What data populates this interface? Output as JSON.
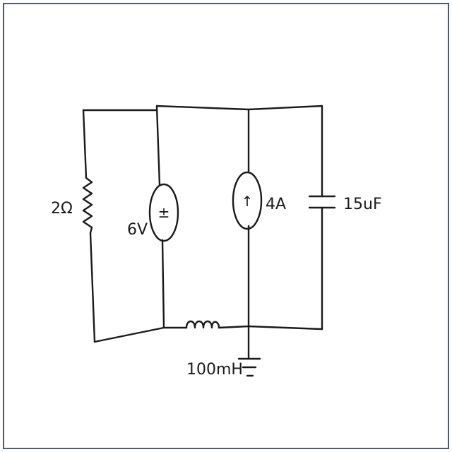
{
  "components": {
    "resistor": {
      "label": "2Ω"
    },
    "voltage_source": {
      "label": "6V",
      "symbol": "±"
    },
    "current_source": {
      "label": "4A",
      "symbol": "↑"
    },
    "capacitor": {
      "label": "15uF"
    },
    "inductor": {
      "label": "100mH"
    }
  },
  "colors": {
    "ink": "#1a1a1a",
    "frame": "#4a5a7a",
    "paper": "#ffffff"
  }
}
